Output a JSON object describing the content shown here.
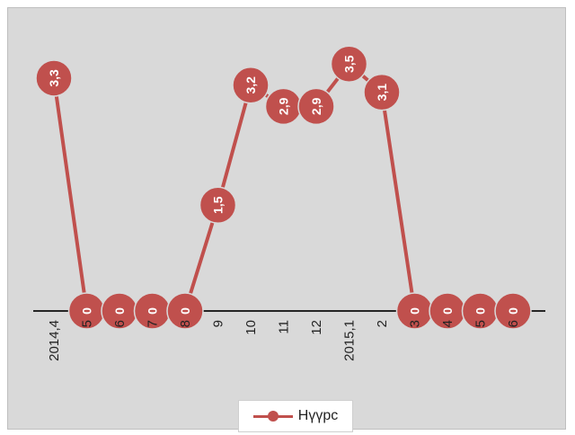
{
  "chart_data": {
    "type": "line",
    "categories": [
      "2014,4",
      "5",
      "6",
      "7",
      "8",
      "9",
      "10",
      "11",
      "12",
      "2015,1",
      "2",
      "3",
      "4",
      "5",
      "6"
    ],
    "series": [
      {
        "name": "Нүүрс",
        "values": [
          3.3,
          0,
          0,
          0,
          0,
          1.5,
          3.2,
          2.9,
          2.9,
          3.5,
          3.1,
          0,
          0,
          0,
          0
        ],
        "labels": [
          "3,3",
          "0",
          "0",
          "0",
          "0",
          "1,5",
          "3,2",
          "2,9",
          "2,9",
          "3,5",
          "3,1",
          "0",
          "0",
          "0",
          "0"
        ],
        "visible_points": [
          0,
          5,
          6,
          7,
          8,
          9,
          10,
          11
        ],
        "color": "#c0504d"
      }
    ],
    "ylim": [
      0,
      4
    ],
    "grid": false,
    "legend_placement": "bottom",
    "background": "#d9d9d9",
    "axis_color": "#262626"
  },
  "legend": {
    "label": "Нүүрс"
  }
}
